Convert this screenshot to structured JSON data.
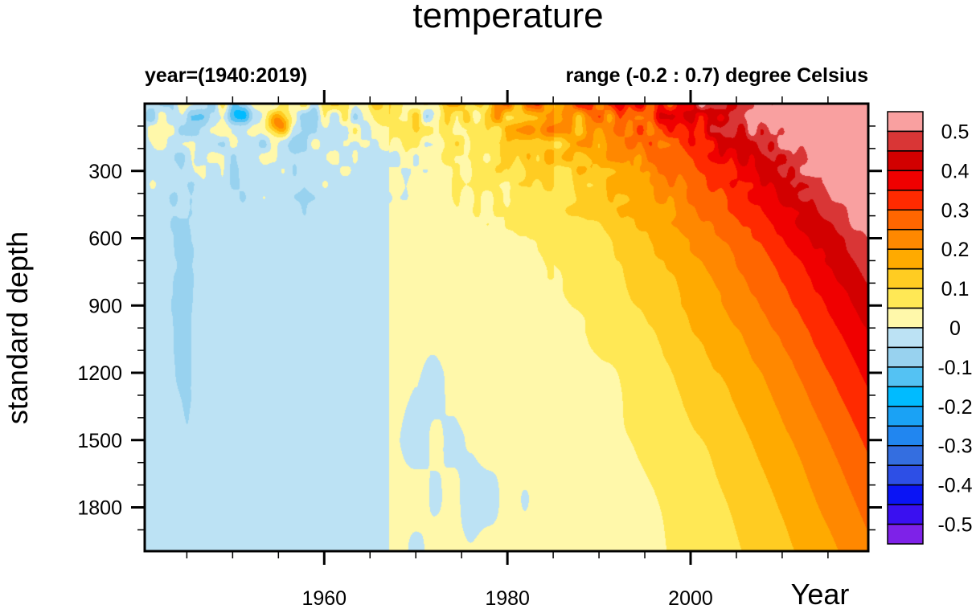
{
  "chart_data": {
    "type": "heatmap",
    "subtype": "filled-contour",
    "title": "temperature",
    "left_string": "year=(1940:2019)",
    "right_string": "range (-0.2 : 0.7) degree Celsius",
    "xlabel": "Year",
    "ylabel": "standard depth",
    "x_range": [
      1940,
      2019
    ],
    "y_range": [
      0,
      2000
    ],
    "y_reversed": true,
    "x_ticks": [
      1960,
      1980,
      2000
    ],
    "x_tick_labels": [
      "1960",
      "1980",
      "2000"
    ],
    "x_minor_step": 5,
    "y_ticks": [
      300,
      600,
      900,
      1200,
      1500,
      1800
    ],
    "y_tick_labels": [
      "300",
      "600",
      "900",
      "1200",
      "1500",
      "1800"
    ],
    "y_minor_step": 100,
    "value_units": "degree Celsius",
    "value_range": [
      -0.2,
      0.7
    ],
    "grid": false,
    "legend": {
      "type": "colorbar",
      "placement": "right",
      "levels": [
        -0.5,
        -0.45,
        -0.4,
        -0.35,
        -0.3,
        -0.25,
        -0.2,
        -0.15,
        -0.1,
        -0.05,
        0,
        0.05,
        0.1,
        0.15,
        0.2,
        0.25,
        0.3,
        0.35,
        0.4,
        0.45,
        0.5
      ],
      "labels": [
        "0.5",
        "0.4",
        "0.3",
        "0.2",
        "0.1",
        "0",
        "-0.1",
        "-0.2",
        "-0.3",
        "-0.4",
        "-0.5"
      ],
      "label_values": [
        0.5,
        0.4,
        0.3,
        0.2,
        0.1,
        0,
        -0.1,
        -0.2,
        -0.3,
        -0.4,
        -0.5
      ],
      "colors_top_to_bottom": [
        "#f9a0a0",
        "#d93636",
        "#d20000",
        "#f00000",
        "#ff2a00",
        "#ff6600",
        "#ff8800",
        "#ffaa00",
        "#ffcc22",
        "#ffe855",
        "#fff8aa",
        "#bce2f4",
        "#98d2ef",
        "#54c2f3",
        "#00bbff",
        "#1aa2f5",
        "#2186f0",
        "#346ee0",
        "#2d4fe6",
        "#0a14f5",
        "#3a10f0",
        "#7e22e8"
      ]
    },
    "description_of_field": {
      "surface_warming_trend": "values rise from ~0 before 1970 to >0.5 near surface after 2010",
      "deep_pattern": "mostly 0 to 0.05 below 1000 m with negative patches (-0.05 to 0) before 1966",
      "warming_penetration": "0.05-0.1 warming extends to ~1700 m by 2019",
      "notable_features": [
        {
          "year": 1955,
          "depth": 80,
          "value": 0.3
        },
        {
          "year": 1951,
          "depth": 30,
          "value": -0.15
        },
        {
          "year": 1972,
          "depth": 30,
          "value": -0.1
        },
        {
          "year": 1976,
          "depth": 30,
          "value": -0.1
        },
        {
          "year": 2016,
          "depth": 20,
          "value": 0.55
        }
      ]
    }
  }
}
